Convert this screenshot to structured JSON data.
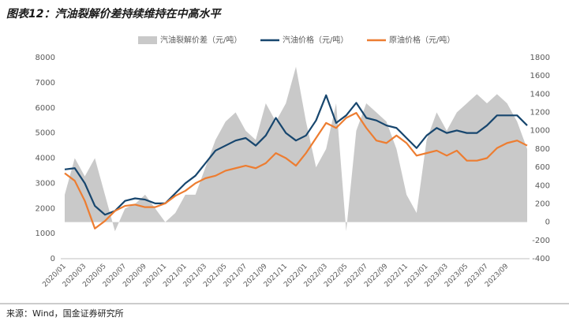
{
  "chart_data": {
    "type": "line",
    "title": "图表12：汽油裂解价差持续维持在中高水平",
    "source": "来源：Wind，国金证券研究所",
    "categories": [
      "2020/01",
      null,
      "2020/03",
      null,
      "2020/05",
      null,
      "2020/07",
      null,
      "2020/09",
      null,
      "2020/11",
      null,
      "2021/01",
      null,
      "2021/03",
      null,
      "2021/05",
      null,
      "2021/07",
      null,
      "2021/09",
      null,
      "2021/11",
      null,
      "2022/01",
      null,
      "2022/03",
      null,
      "2022/05",
      null,
      "2022/07",
      null,
      "2022/09",
      null,
      "2022/11",
      null,
      "2023/01",
      null,
      "2023/03",
      null,
      "2023/05",
      null,
      "2023/07",
      null,
      "2023/09",
      null,
      null
    ],
    "series": [
      {
        "name": "汽油裂解价差（元/吨）",
        "color": "#c9c9c9",
        "kind": "area",
        "axis": "y2",
        "values": [
          300,
          700,
          500,
          700,
          300,
          -100,
          150,
          200,
          300,
          150,
          0,
          100,
          300,
          300,
          600,
          900,
          1100,
          1200,
          1000,
          900,
          1300,
          1100,
          1300,
          1700,
          1100,
          600,
          800,
          1300,
          -100,
          1000,
          1300,
          1200,
          1100,
          800,
          300,
          100,
          900,
          1200,
          1000,
          1200,
          1300,
          1400,
          1300,
          1400,
          1300,
          1100,
          800
        ]
      },
      {
        "name": "汽油价格（元/吨）",
        "color": "#17466e",
        "values": [
          3550,
          3600,
          3000,
          2100,
          1750,
          1900,
          2300,
          2400,
          2350,
          2200,
          2200,
          2600,
          3000,
          3300,
          3800,
          4300,
          4500,
          4700,
          4800,
          4500,
          4900,
          5600,
          5000,
          4700,
          4900,
          5500,
          6500,
          5400,
          5700,
          6200,
          5600,
          5500,
          5300,
          5200,
          4800,
          4400,
          4900,
          5200,
          5000,
          5100,
          5000,
          5000,
          5300,
          5700,
          5700,
          5700,
          5300
        ]
      },
      {
        "name": "原油价格（元/吨）",
        "color": "#ed7d31",
        "values": [
          3400,
          3100,
          2300,
          1200,
          1500,
          1900,
          2100,
          2150,
          2050,
          2050,
          2200,
          2500,
          2700,
          3000,
          3200,
          3300,
          3500,
          3600,
          3700,
          3600,
          3800,
          4200,
          4000,
          3700,
          4200,
          4800,
          5400,
          5200,
          5600,
          5800,
          5200,
          4700,
          4600,
          4900,
          4600,
          4100,
          4200,
          4300,
          4100,
          4300,
          3900,
          3900,
          4000,
          4400,
          4600,
          4700,
          4500
        ]
      }
    ],
    "ylim": [
      0,
      8000
    ],
    "yticks": [
      0,
      1000,
      2000,
      3000,
      4000,
      5000,
      6000,
      7000,
      8000
    ],
    "y2lim": [
      -400,
      1800
    ],
    "y2ticks": [
      -400,
      -200,
      0,
      200,
      400,
      600,
      800,
      1000,
      1200,
      1400,
      1600,
      1800
    ],
    "grid": false,
    "legend": "top"
  }
}
